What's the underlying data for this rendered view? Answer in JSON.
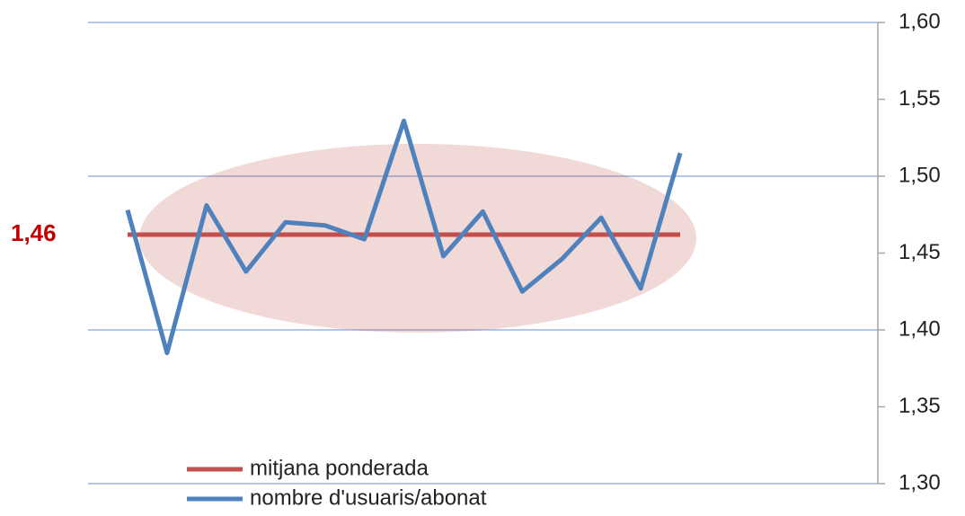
{
  "chart_data": {
    "type": "line",
    "categories": [
      null,
      null,
      null,
      null,
      null,
      null,
      null,
      null,
      null,
      null,
      null,
      null,
      null,
      null,
      null
    ],
    "series": [
      {
        "name": "mitjana ponderada",
        "color": "#c0504d",
        "values": [
          1.462,
          1.462,
          1.462,
          1.462,
          1.462,
          1.462,
          1.462,
          1.462,
          1.462,
          1.462,
          1.462,
          1.462,
          1.462,
          1.462,
          1.462
        ]
      },
      {
        "name": "nombre d'usuaris/abonat",
        "color": "#4f81bd",
        "values": [
          1.478,
          1.385,
          1.481,
          1.438,
          1.47,
          1.468,
          1.459,
          1.536,
          1.448,
          1.477,
          1.425,
          1.446,
          1.473,
          1.427,
          1.515
        ]
      }
    ],
    "annotation": {
      "value": 1.462,
      "label": "1,46",
      "color": "#c00000"
    },
    "ylim": [
      1.3,
      1.6
    ],
    "yticks": [
      {
        "value": 1.3,
        "label": "1,30"
      },
      {
        "value": 1.35,
        "label": "1,35"
      },
      {
        "value": 1.4,
        "label": "1,40"
      },
      {
        "value": 1.45,
        "label": "1,45"
      },
      {
        "value": 1.5,
        "label": "1,50"
      },
      {
        "value": 1.55,
        "label": "1,55"
      },
      {
        "value": 1.6,
        "label": "1,60"
      }
    ],
    "grid": true,
    "y_axis_side": "right",
    "legend": "bottom-left"
  }
}
